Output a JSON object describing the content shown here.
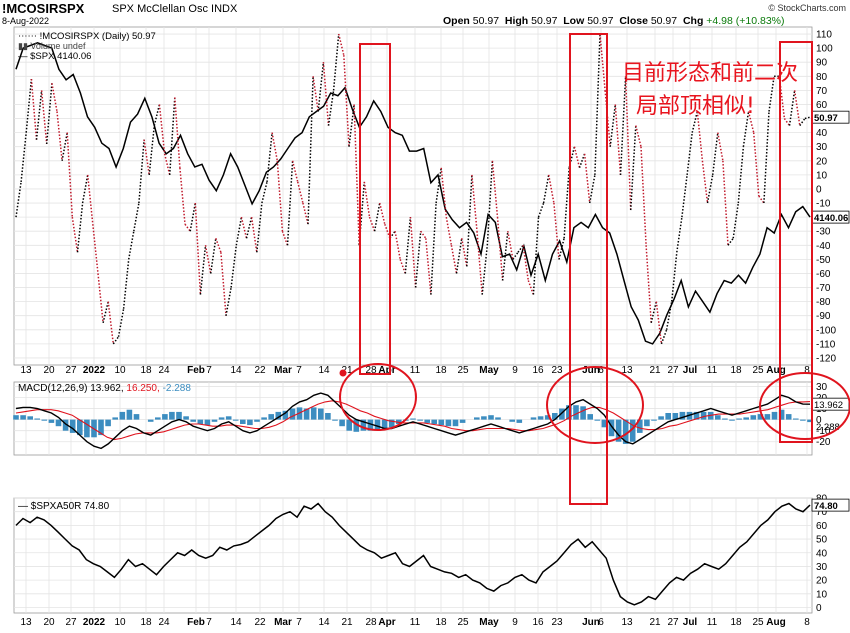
{
  "header": {
    "symbol": "!MCOSIRSPX",
    "name": "SPX McClellan Osc INDX",
    "date": "8-Aug-2022",
    "credit": "© StockCharts.com",
    "open_label": "Open",
    "open": "50.97",
    "high_label": "High",
    "high": "50.97",
    "low_label": "Low",
    "low": "50.97",
    "close_label": "Close",
    "close": "50.97",
    "chg_label": "Chg",
    "chg": "+4.98 (+10.83%)"
  },
  "annotations": [
    "目前形态和前二次",
    "局部顶相似!"
  ],
  "colors": {
    "dotted_series": "#000000",
    "dotted_down": "#c0182a",
    "spx": "#000000",
    "macd": "#000000",
    "signal": "#e0141e",
    "hist": "#3c8dc0",
    "box": "#e0141e",
    "grid": "#e4e4e4"
  },
  "x_ticks": [
    "13",
    "20",
    "27",
    "2022",
    "10",
    "18",
    "24",
    "Feb",
    "7",
    "14",
    "22",
    "Mar",
    "7",
    "14",
    "21",
    "28",
    "Apr",
    "11",
    "18",
    "25",
    "May",
    "9",
    "16",
    "23",
    "Jun",
    "6",
    "13",
    "21",
    "27",
    "Jul",
    "11",
    "18",
    "25",
    "Aug",
    "8"
  ],
  "chart_data": [
    {
      "type": "line",
      "legend": [
        "!MCOSIRSPX (Daily) 50.97",
        "Volume undef",
        "$SPX 4140.06"
      ],
      "series": [
        {
          "name": "!MCOSIRSPX (Daily) 50.97",
          "values": [
            -20,
            5,
            40,
            78,
            35,
            70,
            32,
            75,
            55,
            20,
            40,
            -20,
            -45,
            -10,
            10,
            -25,
            -60,
            -95,
            -80,
            -110,
            -105,
            -85,
            -50,
            -30,
            -10,
            35,
            10,
            45,
            60,
            25,
            10,
            65,
            15,
            -25,
            -30,
            -10,
            -75,
            -40,
            -60,
            -35,
            -45,
            -90,
            -70,
            -40,
            -20,
            -35,
            -20,
            -45,
            -10,
            5,
            40,
            20,
            -30,
            -40,
            20,
            5,
            -10,
            -25,
            80,
            55,
            90,
            45,
            70,
            110,
            95,
            30,
            60,
            -40,
            5,
            -20,
            -30,
            -10,
            -25,
            -35,
            -30,
            -50,
            -60,
            -20,
            -70,
            -30,
            -35,
            -75,
            -10,
            15,
            -20,
            -40,
            -60,
            -35,
            -55,
            10,
            -30,
            -75,
            -40,
            20,
            -20,
            -65,
            -30,
            -50,
            -45,
            -40,
            -65,
            -75,
            -20,
            -10,
            10,
            -10,
            -50,
            -35,
            15,
            30,
            15,
            25,
            -10,
            10,
            110,
            70,
            30,
            60,
            10,
            80,
            -15,
            45,
            30,
            -40,
            -95,
            -80,
            -110,
            -100,
            -80,
            -45,
            -20,
            10,
            40,
            55,
            20,
            -10,
            10,
            40,
            20,
            -40,
            -35,
            -10,
            30,
            55,
            40,
            -5,
            -10,
            55,
            80,
            80,
            50,
            45,
            70,
            45,
            50,
            50.97
          ]
        },
        {
          "name": "$SPX 4140.06",
          "values": [
            4700,
            4780,
            4790,
            4800,
            4790,
            4780,
            4700,
            4660,
            4680,
            4610,
            4520,
            4480,
            4420,
            4400,
            4330,
            4400,
            4500,
            4530,
            4590,
            4520,
            4420,
            4380,
            4400,
            4450,
            4380,
            4330,
            4340,
            4280,
            4240,
            4300,
            4380,
            4330,
            4260,
            4190,
            4240,
            4310,
            4330,
            4360,
            4400,
            4440,
            4460,
            4520,
            4540,
            4560,
            4610,
            4600,
            4630,
            4550,
            4480,
            4520,
            4580,
            4540,
            4480,
            4460,
            4450,
            4390,
            4390,
            4400,
            4270,
            4300,
            4170,
            4130,
            4100,
            4120,
            4080,
            4000,
            4150,
            4120,
            3990,
            4000,
            3940,
            4030,
            3920,
            4000,
            3900,
            4000,
            4050,
            3970,
            4100,
            4120,
            4100,
            4150,
            4100,
            4080,
            4000,
            3900,
            3800,
            3750,
            3670,
            3660,
            3700,
            3770,
            3830,
            3900,
            3800,
            3860,
            3820,
            3780,
            3850,
            3900,
            3890,
            3920,
            3890,
            3950,
            4000,
            4100,
            4080,
            4150,
            4100,
            4160,
            4180,
            4140.06
          ]
        }
      ],
      "axis_left": "x_ticks",
      "ylim": [
        -125,
        115
      ],
      "y_ticks": [
        110,
        100,
        90,
        80,
        70,
        60,
        50,
        40,
        30,
        20,
        10,
        0,
        -10,
        -20,
        -30,
        -40,
        -50,
        -60,
        -70,
        -80,
        -90,
        -100,
        -110,
        -120
      ],
      "price_labels": [
        "50.97",
        "4140.06"
      ]
    },
    {
      "type": "line",
      "legend": [
        "MACD(12,26,9) 13.962, 16.250, -2.288"
      ],
      "legend_parts": {
        "name": "MACD(12,26,9)",
        "macd": "13.962",
        "signal": "16.250",
        "hist": "-2.288"
      },
      "series": [
        {
          "name": "MACD",
          "values": [
            10,
            11,
            11,
            10,
            8,
            6,
            2,
            -4,
            -8,
            -14,
            -20,
            -24,
            -26,
            -22,
            -16,
            -10,
            -6,
            -8,
            -12,
            -14,
            -10,
            -6,
            -2,
            0,
            -2,
            -6,
            -8,
            -10,
            -8,
            -4,
            -2,
            -6,
            -10,
            -12,
            -10,
            -6,
            -2,
            2,
            6,
            12,
            16,
            18,
            22,
            24,
            22,
            16,
            10,
            4,
            0,
            -2,
            -4,
            -6,
            -8,
            -8,
            -6,
            -4,
            -2,
            -4,
            -6,
            -8,
            -10,
            -12,
            -14,
            -12,
            -10,
            -8,
            -6,
            -4,
            -6,
            -8,
            -10,
            -12,
            -10,
            -8,
            -6,
            -4,
            0,
            6,
            12,
            16,
            18,
            14,
            10,
            4,
            -6,
            -14,
            -20,
            -22,
            -18,
            -14,
            -10,
            -6,
            -2,
            0,
            2,
            4,
            6,
            8,
            10,
            8,
            6,
            4,
            6,
            8,
            10,
            12,
            14,
            18,
            22,
            20,
            16,
            14,
            13.962
          ]
        },
        {
          "name": "Signal",
          "values": [
            6,
            7,
            8,
            9,
            9,
            9,
            8,
            6,
            4,
            0,
            -4,
            -8,
            -12,
            -16,
            -18,
            -17,
            -15,
            -13,
            -12,
            -12,
            -12,
            -11,
            -9,
            -7,
            -5,
            -4,
            -4,
            -5,
            -6,
            -6,
            -5,
            -5,
            -6,
            -7,
            -8,
            -8,
            -7,
            -5,
            -2,
            2,
            5,
            8,
            11,
            14,
            16,
            17,
            16,
            14,
            11,
            8,
            6,
            3,
            1,
            -1,
            -2,
            -3,
            -3,
            -3,
            -3,
            -4,
            -5,
            -6,
            -8,
            -9,
            -10,
            -10,
            -9,
            -8,
            -8,
            -8,
            -8,
            -9,
            -10,
            -10,
            -9,
            -8,
            -6,
            -4,
            -1,
            3,
            6,
            9,
            11,
            11,
            9,
            6,
            2,
            -2,
            -6,
            -8,
            -9,
            -9,
            -8,
            -6,
            -5,
            -3,
            -1,
            1,
            3,
            4,
            5,
            5,
            5,
            5,
            6,
            7,
            8,
            9,
            11,
            13,
            15,
            16,
            16,
            16.25
          ]
        },
        {
          "name": "Histogram",
          "values": [
            4,
            4,
            3,
            1,
            -1,
            -3,
            -6,
            -10,
            -12,
            -14,
            -16,
            -16,
            -14,
            -6,
            2,
            7,
            9,
            5,
            0,
            -2,
            2,
            5,
            7,
            7,
            3,
            -2,
            -4,
            -5,
            -2,
            2,
            3,
            -1,
            -4,
            -5,
            -2,
            2,
            5,
            7,
            8,
            10,
            11,
            10,
            11,
            10,
            6,
            -1,
            -6,
            -10,
            -11,
            -10,
            -10,
            -9,
            -9,
            -7,
            -4,
            -1,
            1,
            -1,
            -3,
            -4,
            -5,
            -6,
            -6,
            -3,
            0,
            2,
            3,
            4,
            2,
            0,
            -2,
            -3,
            0,
            2,
            3,
            4,
            6,
            10,
            13,
            13,
            12,
            5,
            -1,
            -7,
            -15,
            -20,
            -22,
            -20,
            -12,
            -6,
            -1,
            3,
            6,
            6,
            7,
            7,
            7,
            7,
            7,
            4,
            1,
            -1,
            1,
            2,
            4,
            5,
            5,
            7,
            9,
            5,
            1,
            -1,
            -2.288
          ]
        }
      ],
      "ylim": [
        -32,
        34
      ],
      "y_ticks": [
        30,
        20,
        10,
        0,
        -10,
        -20
      ],
      "price_labels": [
        "13.962",
        "2.288"
      ]
    },
    {
      "type": "line",
      "legend": [
        "$SPXA50R 74.80"
      ],
      "series": [
        {
          "name": "$SPXA50R 74.80",
          "values": [
            60,
            65,
            62,
            66,
            64,
            60,
            55,
            50,
            45,
            42,
            35,
            32,
            30,
            26,
            22,
            28,
            35,
            30,
            32,
            28,
            24,
            30,
            35,
            40,
            38,
            42,
            38,
            36,
            38,
            44,
            42,
            45,
            46,
            48,
            52,
            56,
            60,
            65,
            68,
            70,
            66,
            74,
            72,
            76,
            70,
            66,
            60,
            55,
            50,
            45,
            42,
            40,
            36,
            38,
            40,
            32,
            30,
            34,
            38,
            30,
            28,
            26,
            25,
            22,
            24,
            20,
            18,
            14,
            12,
            16,
            18,
            22,
            24,
            20,
            18,
            26,
            30,
            34,
            40,
            46,
            50,
            44,
            48,
            42,
            36,
            20,
            8,
            4,
            2,
            4,
            8,
            6,
            12,
            18,
            22,
            20,
            25,
            28,
            32,
            30,
            28,
            32,
            38,
            44,
            48,
            54,
            60,
            64,
            70,
            74,
            76,
            72,
            70,
            74.8
          ]
        }
      ],
      "ylim": [
        -4,
        80
      ],
      "y_ticks": [
        80,
        70,
        60,
        50,
        40,
        30,
        20,
        10,
        0
      ],
      "price_labels": [
        "74.80"
      ]
    }
  ]
}
